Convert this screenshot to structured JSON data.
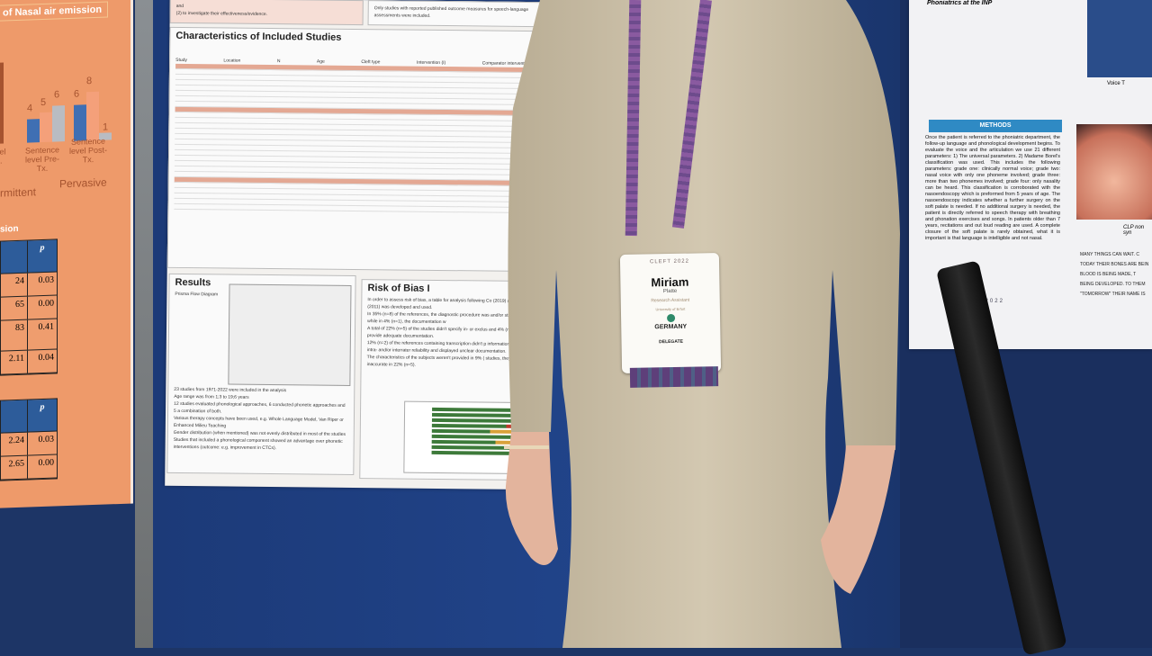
{
  "left_poster": {
    "title": "of Nasal air emission",
    "chart": {
      "groups": [
        {
          "label": "evel Tx.",
          "values": [
            null,
            null,
            0
          ]
        },
        {
          "label": "Sentence level Pre-Tx.",
          "values": [
            4,
            5,
            6
          ]
        },
        {
          "label": "Sentence level Post-Tx.",
          "values": [
            6,
            8,
            1
          ]
        }
      ],
      "legend": [
        "termittent",
        "Pervasive"
      ],
      "colors": [
        "#3f6fb3",
        "#f4a07a",
        "#b9bcc2"
      ]
    },
    "table1": {
      "title": "sion",
      "headers": [
        "",
        "p"
      ],
      "rows": [
        [
          "24",
          "0.03"
        ],
        [
          "65",
          "0.00"
        ],
        [
          "83",
          "0.41"
        ],
        [
          "2.11",
          "0.04"
        ]
      ]
    },
    "table2": {
      "headers": [
        "",
        "p"
      ],
      "rows": [
        [
          "2.24",
          "0.03"
        ],
        [
          "2.65",
          "0.00"
        ]
      ]
    }
  },
  "center_poster": {
    "top_left_text": [
      "and",
      "(2) to investigate their effectiveness/evidence."
    ],
    "top_right_text": "Only studies with reported published outcome measures for speech-language assessments were included.",
    "characteristics_title": "Characteristics of Included Studies",
    "table_headers": [
      "Study",
      "Location",
      "N",
      "Age",
      "Cleft type",
      "Intervention (I)",
      "Comparator intervention (CI)"
    ],
    "results_title": "Results",
    "prisma_label": "Prisma Flow Diagram",
    "results_bullets": [
      "23 studies from 1971-2022 were included in the analysis",
      "Age range was from 1;3 to 19;6 years",
      "12 studies evaluated phonological approaches, 6 conducted phonetic approaches and 5 a combination of both.",
      "Various therapy concepts have been used, e.g. Whole Language Model, Van Riper or Enhanced Milieu Teaching",
      "Gender distribution (when mentioned) was not evenly distributed in most of the studies",
      "Studies that included a phonological component showed an advantage over phonetic interventions (outcome: e.g. improvement in CTCs)."
    ],
    "risk_title": "Risk of Bias I",
    "risk_bullets": [
      "In order to assess risk of bias, a table for analysis following Co (2019) and Higgins (2011) was developed and used.",
      "In 35% (n=8) of the references, the diagnostic procedure was and/or standardized, while in 4% (n=1), the documentation w",
      "A total of 22% (n=5) of the studies didn't specify in- or exclus and 4% (n=1) didn't provide adequate documentation.",
      "12% (n=2) of the references containing transcription didn't p information regarding intra- and/or interrater reliability and displayed unclear documentation.",
      "The characteristics of the subjects weren't provided in 9% ( studies, they were inaccurate in 22% (n=5)."
    ],
    "risk_colors": {
      "low": "#3d7a3a",
      "some": "#d9a23a",
      "high": "#c0392b"
    }
  },
  "right_poster": {
    "header_text": "Phoniatrics at the INP",
    "methods_title": "METHODS",
    "methods_text": "Once the patient is referred to the phoniatric department, the follow-up language and phonological development begins. To evaluate the voice and the articulation we use 21 different parameters: 1) The universal parameters. 2) Madame Borel's classification was used. This includes the following parameters: grade one: clinically normal voice; grade two: nasal voice with only one phoneme involved; grade three: more than two phonemes involved; grade four: only nasality can be heard. This classification is corroborated with the nasoendoscopy which is preformed from 5 years of age. The nasoendoscopy indicates whether a further surgery on the soft palate is needed. If no additional surgery is needed, the patient is directly referred to speech therapy with breathing and phonation exercises and songs. In patients older than 7 years, recitations and out loud reading are used. A complete closure of the soft palate is rarely obtained, what it is important is that language is intelligible and not nasal.",
    "caption_voice": "Voice T",
    "caption_clp": "CLP non syn",
    "quote": [
      "MANY THINGS CAN WAIT. C",
      "TODAY THEIR BONES ARE BEIN",
      "BLOOD IS BEING MADE, T",
      "BEING DEVELOPED. TO THEM",
      "\"TOMORROW\" THEIR NAME IS"
    ],
    "logo_text": "CLEFT 2022"
  },
  "badge": {
    "logo_text": "CLEFT 2022",
    "first_name": "Miriam",
    "last_name": "Platte",
    "role": "Research Assistant",
    "institution": "University of Erfurt",
    "country": "GERMANY",
    "type": "DELEGATE",
    "dot_color": "#2e8a6a"
  },
  "colors": {
    "dress": "#cbbfa6",
    "board": "#21448a",
    "lanyard": "#7a52a0",
    "left_poster": "#ee9a6a"
  }
}
